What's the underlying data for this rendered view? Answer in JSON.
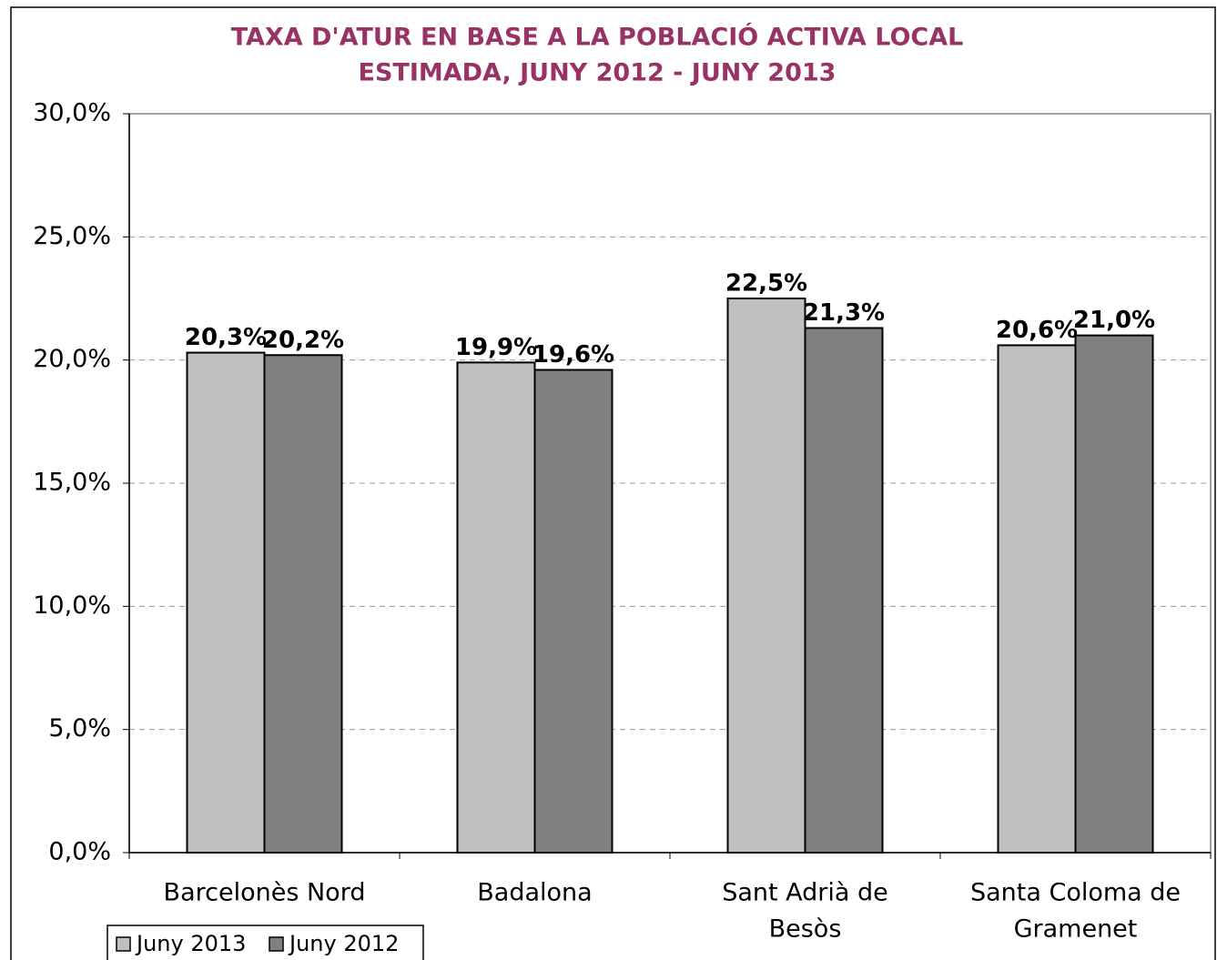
{
  "chart_data": {
    "type": "bar",
    "title": [
      "TAXA D'ATUR EN BASE A LA POBLACIÓ ACTIVA LOCAL",
      "ESTIMADA, JUNY 2012 - JUNY 2013"
    ],
    "categories": [
      [
        "Barcelonès Nord"
      ],
      [
        "Badalona"
      ],
      [
        "Sant Adrià de",
        "Besòs"
      ],
      [
        "Santa Coloma de",
        "Gramenet"
      ]
    ],
    "series": [
      {
        "name": "Juny 2013",
        "color": "#c0c0c0",
        "values": [
          20.3,
          19.9,
          22.5,
          20.6
        ],
        "value_labels": [
          "20,3%",
          "19,9%",
          "22,5%",
          "20,6%"
        ]
      },
      {
        "name": "Juny 2012",
        "color": "#808080",
        "values": [
          20.2,
          19.6,
          21.3,
          21.0
        ],
        "value_labels": [
          "20,2%",
          "19,6%",
          "21,3%",
          "21,0%"
        ]
      }
    ],
    "ylim": [
      0,
      30
    ],
    "yticks": [
      {
        "value": 0,
        "label": "0,0%"
      },
      {
        "value": 5,
        "label": "5,0%"
      },
      {
        "value": 10,
        "label": "10,0%"
      },
      {
        "value": 15,
        "label": "15,0%"
      },
      {
        "value": 20,
        "label": "20,0%"
      },
      {
        "value": 25,
        "label": "25,0%"
      },
      {
        "value": 30,
        "label": "30,0%"
      }
    ],
    "grid": true,
    "legend": "bottom-left"
  }
}
